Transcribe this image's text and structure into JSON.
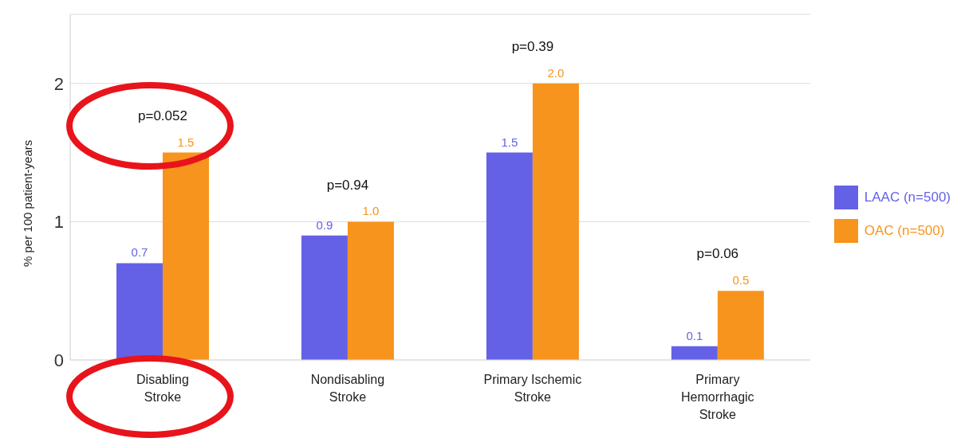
{
  "chart_data": {
    "type": "bar",
    "ylabel": "% per 100 patient-years",
    "categories": [
      "Disabling\nStroke",
      "Nondisabling\nStroke",
      "Primary Ischemic\nStroke",
      "Primary\nHemorrhagic\nStroke"
    ],
    "series": [
      {
        "name": "LAAC (n=500)",
        "color": "#6461e6",
        "values": [
          0.7,
          0.9,
          1.5,
          0.1
        ],
        "value_labels": [
          "0.7",
          "0.9",
          "1.5",
          "0.1"
        ]
      },
      {
        "name": "OAC (n=500)",
        "color": "#f7941d",
        "values": [
          1.5,
          1.0,
          2.0,
          0.5
        ],
        "value_labels": [
          "1.5",
          "1.0",
          "2.0",
          "0.5"
        ]
      }
    ],
    "ylim": [
      0,
      2.5
    ],
    "yticks": [
      0,
      1,
      2
    ],
    "grid": "y",
    "legend": "right",
    "annotations": [
      "p=0.052",
      "p=0.94",
      "p=0.39",
      "p=0.06"
    ]
  }
}
